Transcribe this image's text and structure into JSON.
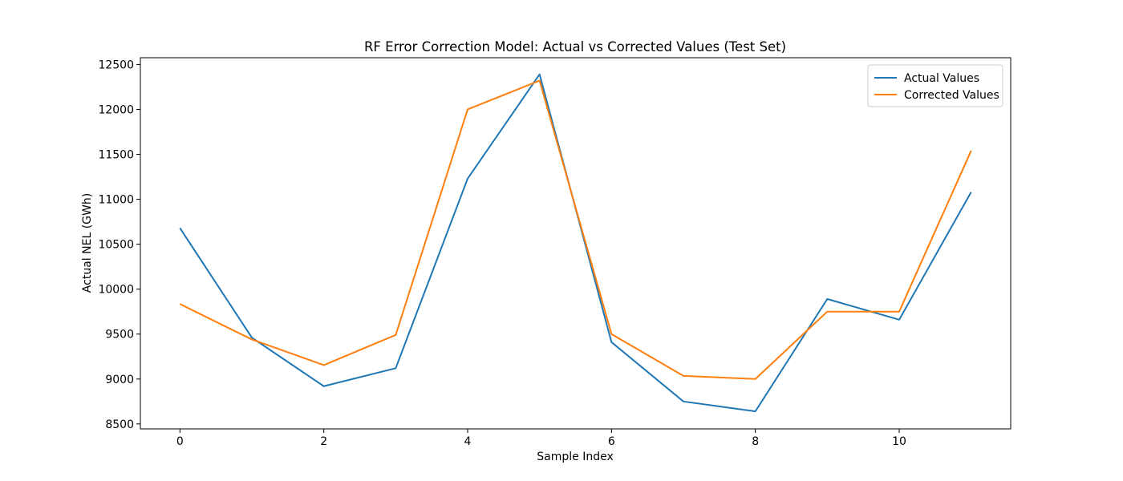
{
  "chart_data": {
    "type": "line",
    "title": "RF Error Correction Model: Actual vs Corrected Values (Test Set)",
    "xlabel": "Sample Index",
    "ylabel": "Actual NEL (GWh)",
    "x": [
      0,
      1,
      2,
      3,
      4,
      5,
      6,
      7,
      8,
      9,
      10,
      11
    ],
    "xlim": [
      -0.55,
      11.55
    ],
    "ylim": [
      8445,
      12575
    ],
    "xticks": [
      0,
      2,
      4,
      6,
      8,
      10
    ],
    "yticks": [
      8500,
      9000,
      9500,
      10000,
      10500,
      11000,
      11500,
      12000,
      12500
    ],
    "grid": false,
    "legend_position": "top-right",
    "series": [
      {
        "name": "Actual Values",
        "color": "#1f77b4",
        "values": [
          10680,
          9460,
          8920,
          9120,
          11230,
          12390,
          9410,
          8750,
          8640,
          9890,
          9660,
          11080
        ]
      },
      {
        "name": "Corrected Values",
        "color": "#ff7f0e",
        "values": [
          9835,
          9440,
          9155,
          9490,
          12000,
          12320,
          9500,
          9035,
          9000,
          9750,
          9750,
          11540
        ]
      }
    ]
  }
}
